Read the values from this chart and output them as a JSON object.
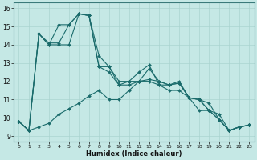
{
  "xlabel": "Humidex (Indice chaleur)",
  "xlim": [
    -0.5,
    23.5
  ],
  "ylim": [
    8.7,
    16.3
  ],
  "yticks": [
    9,
    10,
    11,
    12,
    13,
    14,
    15,
    16
  ],
  "xticks": [
    0,
    1,
    2,
    3,
    4,
    5,
    6,
    7,
    8,
    9,
    10,
    11,
    12,
    13,
    14,
    15,
    16,
    17,
    18,
    19,
    20,
    21,
    22,
    23
  ],
  "background_color": "#c5e8e5",
  "grid_color": "#aad4d0",
  "line_color": "#1a6b6b",
  "series": [
    [
      9.8,
      9.3,
      9.5,
      9.7,
      10.2,
      10.5,
      10.8,
      11.2,
      11.5,
      11.0,
      11.0,
      11.5,
      12.0,
      12.1,
      12.0,
      11.8,
      11.9,
      11.1,
      11.0,
      10.4,
      10.2,
      9.3,
      9.5,
      9.6
    ],
    [
      9.8,
      9.3,
      14.6,
      14.0,
      15.1,
      15.1,
      15.7,
      15.6,
      12.8,
      12.5,
      11.8,
      11.8,
      12.0,
      12.7,
      12.0,
      11.8,
      11.9,
      11.1,
      11.0,
      10.4,
      9.9,
      9.3,
      9.5,
      9.6
    ],
    [
      9.8,
      9.3,
      14.6,
      14.1,
      14.1,
      15.1,
      15.7,
      15.6,
      13.4,
      12.8,
      11.8,
      12.0,
      12.5,
      12.9,
      11.8,
      11.8,
      12.0,
      11.1,
      11.0,
      10.8,
      9.9,
      9.3,
      9.5,
      9.6
    ],
    [
      9.8,
      9.3,
      14.6,
      14.0,
      14.0,
      14.0,
      15.7,
      15.6,
      12.8,
      12.8,
      12.0,
      12.0,
      12.0,
      12.0,
      11.8,
      11.5,
      11.5,
      11.1,
      10.4,
      10.4,
      9.9,
      9.3,
      9.5,
      9.6
    ]
  ]
}
